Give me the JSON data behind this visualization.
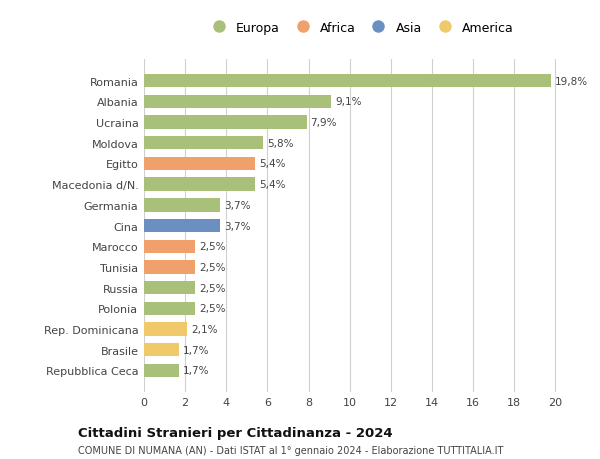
{
  "categories": [
    "Repubblica Ceca",
    "Brasile",
    "Rep. Dominicana",
    "Polonia",
    "Russia",
    "Tunisia",
    "Marocco",
    "Cina",
    "Germania",
    "Macedonia d/N.",
    "Egitto",
    "Moldova",
    "Ucraina",
    "Albania",
    "Romania"
  ],
  "values": [
    1.7,
    1.7,
    2.1,
    2.5,
    2.5,
    2.5,
    2.5,
    3.7,
    3.7,
    5.4,
    5.4,
    5.8,
    7.9,
    9.1,
    19.8
  ],
  "labels": [
    "1,7%",
    "1,7%",
    "2,1%",
    "2,5%",
    "2,5%",
    "2,5%",
    "2,5%",
    "3,7%",
    "3,7%",
    "5,4%",
    "5,4%",
    "5,8%",
    "7,9%",
    "9,1%",
    "19,8%"
  ],
  "colors": [
    "#a8c07a",
    "#f0c96a",
    "#f0c96a",
    "#a8c07a",
    "#a8c07a",
    "#f0a06a",
    "#f0a06a",
    "#6a8fc0",
    "#a8c07a",
    "#a8c07a",
    "#f0a06a",
    "#a8c07a",
    "#a8c07a",
    "#a8c07a",
    "#a8c07a"
  ],
  "legend_labels": [
    "Europa",
    "Africa",
    "Asia",
    "America"
  ],
  "legend_colors": [
    "#a8c07a",
    "#f0a06a",
    "#6a8fc0",
    "#f0c96a"
  ],
  "title": "Cittadini Stranieri per Cittadinanza - 2024",
  "subtitle": "COMUNE DI NUMANA (AN) - Dati ISTAT al 1° gennaio 2024 - Elaborazione TUTTITALIA.IT",
  "xlim": [
    0,
    21
  ],
  "xticks": [
    0,
    2,
    4,
    6,
    8,
    10,
    12,
    14,
    16,
    18,
    20
  ],
  "bg_color": "#ffffff",
  "grid_color": "#d0d0d0",
  "bar_height": 0.65
}
